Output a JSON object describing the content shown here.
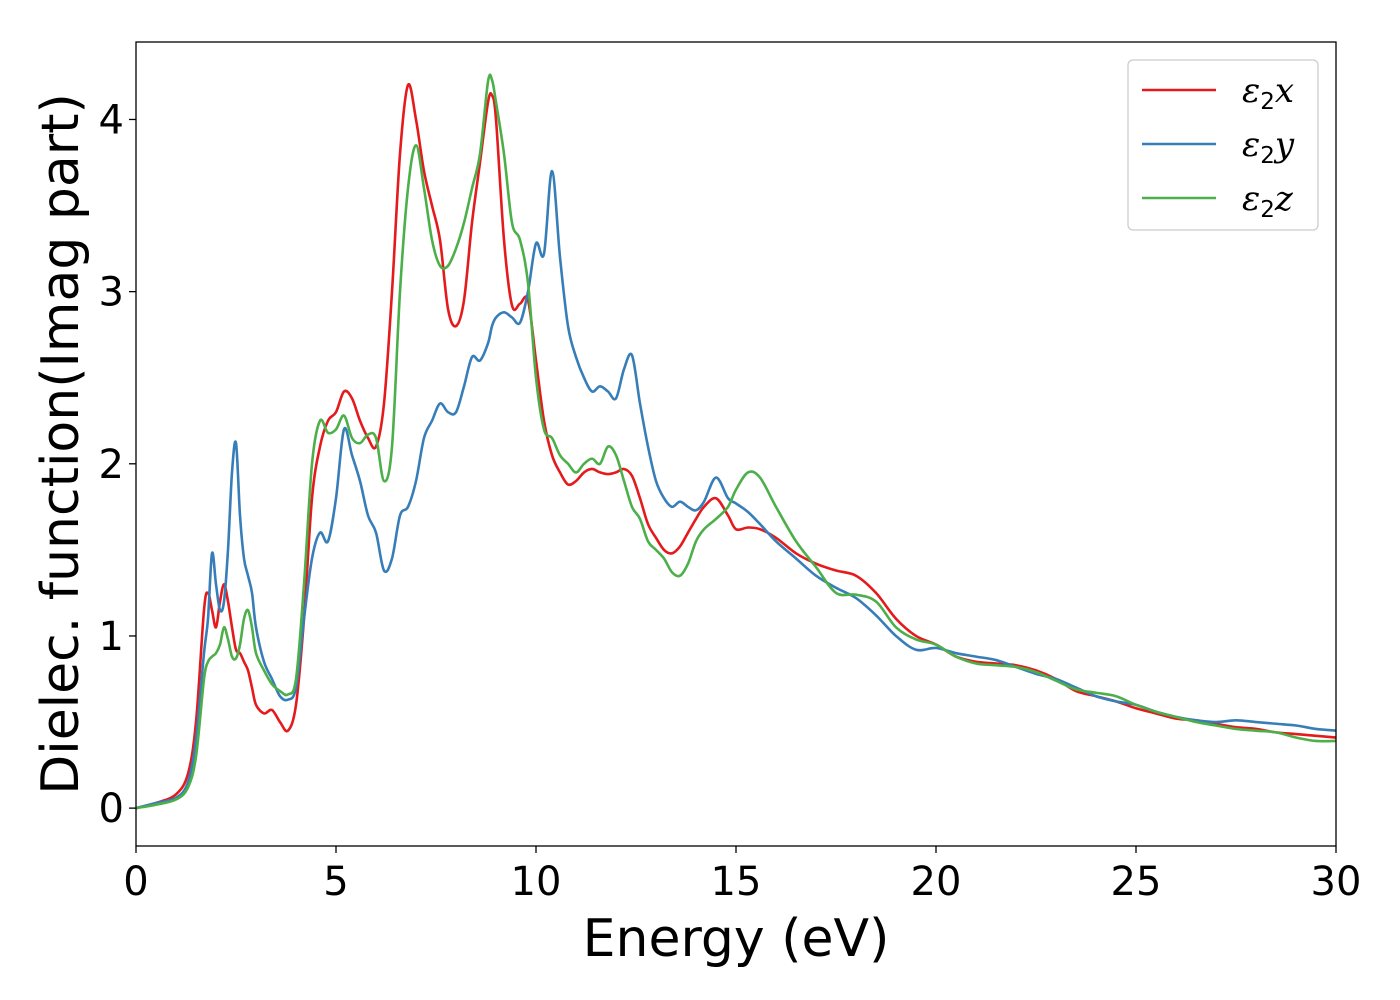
{
  "chart_data": {
    "type": "line",
    "xlabel": "Energy (eV)",
    "ylabel": "Dielec. function(Imag part)",
    "xlim": [
      0,
      30
    ],
    "ylim": [
      -0.22,
      4.45
    ],
    "xticks": [
      0,
      5,
      10,
      15,
      20,
      25,
      30
    ],
    "yticks": [
      0,
      1,
      2,
      3,
      4
    ],
    "grid": false,
    "legend_position": "top-right",
    "x": [
      0,
      0.5,
      1.0,
      1.3,
      1.5,
      1.7,
      1.8,
      1.9,
      2.0,
      2.1,
      2.2,
      2.3,
      2.4,
      2.5,
      2.6,
      2.7,
      2.8,
      2.9,
      3.0,
      3.2,
      3.4,
      3.6,
      3.8,
      4.0,
      4.2,
      4.4,
      4.6,
      4.8,
      5.0,
      5.2,
      5.4,
      5.6,
      5.8,
      6.0,
      6.2,
      6.4,
      6.6,
      6.8,
      7.0,
      7.2,
      7.4,
      7.6,
      7.8,
      8.0,
      8.2,
      8.4,
      8.6,
      8.8,
      8.9,
      9.0,
      9.2,
      9.4,
      9.6,
      9.8,
      10.0,
      10.2,
      10.4,
      10.6,
      10.8,
      11.0,
      11.2,
      11.4,
      11.6,
      11.8,
      12.0,
      12.2,
      12.4,
      12.6,
      12.8,
      13.0,
      13.2,
      13.4,
      13.6,
      13.8,
      14.0,
      14.2,
      14.5,
      14.8,
      15.0,
      15.3,
      15.6,
      16.0,
      16.5,
      17.0,
      17.5,
      18.0,
      18.5,
      19.0,
      19.5,
      20.0,
      20.5,
      21.0,
      21.5,
      22.0,
      22.5,
      23.0,
      23.5,
      24.0,
      24.5,
      25.0,
      25.5,
      26.0,
      26.5,
      27.0,
      27.5,
      28.0,
      28.5,
      29.0,
      29.5,
      30.0
    ],
    "series": [
      {
        "name": "ε₂x",
        "color": "#e41a1c",
        "values": [
          0,
          0.03,
          0.08,
          0.2,
          0.5,
          1.15,
          1.25,
          1.15,
          1.05,
          1.2,
          1.3,
          1.2,
          1.05,
          0.92,
          0.9,
          0.85,
          0.8,
          0.7,
          0.6,
          0.55,
          0.57,
          0.5,
          0.45,
          0.6,
          1.1,
          1.8,
          2.1,
          2.25,
          2.3,
          2.42,
          2.38,
          2.25,
          2.15,
          2.1,
          2.35,
          3.0,
          3.8,
          4.2,
          4.0,
          3.7,
          3.5,
          3.3,
          2.9,
          2.8,
          2.95,
          3.4,
          3.75,
          4.1,
          4.14,
          4.0,
          3.3,
          2.92,
          2.93,
          2.95,
          2.6,
          2.25,
          2.05,
          1.95,
          1.88,
          1.9,
          1.95,
          1.97,
          1.95,
          1.94,
          1.95,
          1.97,
          1.93,
          1.8,
          1.65,
          1.57,
          1.5,
          1.48,
          1.52,
          1.6,
          1.68,
          1.75,
          1.8,
          1.7,
          1.62,
          1.63,
          1.62,
          1.57,
          1.48,
          1.42,
          1.38,
          1.35,
          1.25,
          1.1,
          1.0,
          0.95,
          0.88,
          0.85,
          0.84,
          0.83,
          0.8,
          0.75,
          0.68,
          0.65,
          0.62,
          0.58,
          0.55,
          0.52,
          0.51,
          0.49,
          0.47,
          0.46,
          0.44,
          0.43,
          0.42,
          0.41
        ]
      },
      {
        "name": "ε₂y",
        "color": "#377eb8",
        "values": [
          0,
          0.03,
          0.06,
          0.15,
          0.4,
          0.9,
          1.1,
          1.48,
          1.3,
          1.15,
          1.2,
          1.5,
          1.95,
          2.12,
          1.7,
          1.45,
          1.35,
          1.25,
          1.05,
          0.85,
          0.75,
          0.65,
          0.63,
          0.7,
          1.1,
          1.45,
          1.6,
          1.55,
          1.8,
          2.2,
          2.05,
          1.9,
          1.7,
          1.6,
          1.38,
          1.45,
          1.7,
          1.75,
          1.9,
          2.15,
          2.25,
          2.35,
          2.3,
          2.3,
          2.45,
          2.62,
          2.6,
          2.7,
          2.8,
          2.85,
          2.88,
          2.85,
          2.82,
          3.0,
          3.28,
          3.22,
          3.7,
          3.2,
          2.8,
          2.62,
          2.5,
          2.42,
          2.45,
          2.42,
          2.38,
          2.55,
          2.63,
          2.35,
          2.1,
          1.9,
          1.8,
          1.75,
          1.78,
          1.75,
          1.73,
          1.78,
          1.92,
          1.8,
          1.77,
          1.72,
          1.65,
          1.55,
          1.45,
          1.35,
          1.28,
          1.22,
          1.12,
          1.0,
          0.92,
          0.93,
          0.9,
          0.88,
          0.86,
          0.82,
          0.78,
          0.75,
          0.7,
          0.65,
          0.62,
          0.6,
          0.56,
          0.53,
          0.51,
          0.5,
          0.51,
          0.5,
          0.49,
          0.48,
          0.46,
          0.45
        ]
      },
      {
        "name": "ε₂z",
        "color": "#4daf4a",
        "values": [
          0,
          0.02,
          0.05,
          0.12,
          0.3,
          0.75,
          0.85,
          0.88,
          0.9,
          0.95,
          1.05,
          0.98,
          0.88,
          0.87,
          0.95,
          1.1,
          1.15,
          1.05,
          0.9,
          0.8,
          0.72,
          0.68,
          0.66,
          0.75,
          1.3,
          2.0,
          2.25,
          2.18,
          2.2,
          2.28,
          2.15,
          2.12,
          2.17,
          2.15,
          1.9,
          2.1,
          3.0,
          3.6,
          3.85,
          3.6,
          3.3,
          3.15,
          3.15,
          3.25,
          3.4,
          3.6,
          3.8,
          4.22,
          4.23,
          4.1,
          3.8,
          3.4,
          3.3,
          3.05,
          2.5,
          2.2,
          2.15,
          2.05,
          2.0,
          1.95,
          2.0,
          2.03,
          2.0,
          2.1,
          2.05,
          1.9,
          1.75,
          1.68,
          1.55,
          1.5,
          1.45,
          1.37,
          1.35,
          1.42,
          1.55,
          1.62,
          1.68,
          1.75,
          1.85,
          1.95,
          1.92,
          1.75,
          1.55,
          1.4,
          1.25,
          1.24,
          1.2,
          1.05,
          0.98,
          0.95,
          0.88,
          0.84,
          0.83,
          0.82,
          0.79,
          0.74,
          0.69,
          0.67,
          0.65,
          0.6,
          0.56,
          0.53,
          0.5,
          0.48,
          0.46,
          0.45,
          0.44,
          0.41,
          0.39,
          0.39
        ]
      }
    ]
  }
}
